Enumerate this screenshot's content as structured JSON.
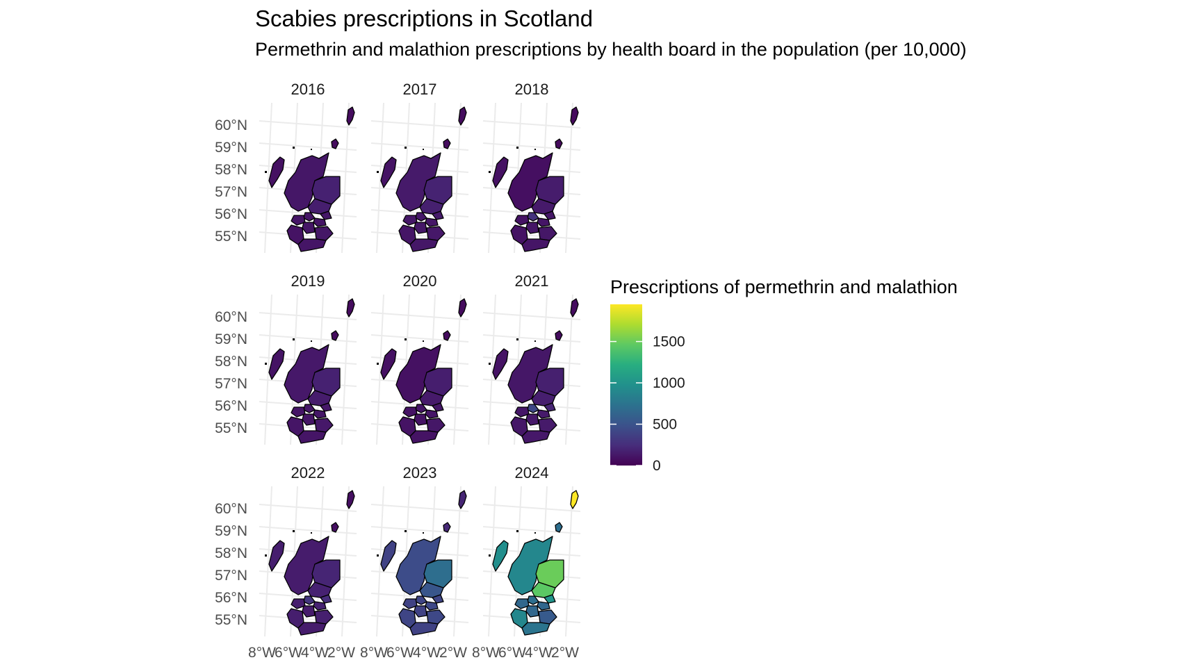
{
  "title": "Scabies prescriptions in Scotland",
  "subtitle": "Permethrin and malathion prescriptions by health board in the population (per 10,000)",
  "chart_data": {
    "type": "choropleth-map-facets",
    "facets": [
      "2016",
      "2017",
      "2018",
      "2019",
      "2020",
      "2021",
      "2022",
      "2023",
      "2024"
    ],
    "y_ticks": [
      "60°N",
      "59°N",
      "58°N",
      "57°N",
      "56°N",
      "55°N"
    ],
    "x_ticks": [
      "8°W",
      "6°W",
      "4°W",
      "2°W"
    ],
    "legend": {
      "title": "Prescriptions of permethrin and malathion",
      "ticks": [
        {
          "label": "1500",
          "value": 1500
        },
        {
          "label": "1000",
          "value": 1000
        },
        {
          "label": "500",
          "value": 500
        },
        {
          "label": "0",
          "value": 0
        }
      ],
      "min": 0,
      "max": 1950,
      "palette": "viridis",
      "placement": "right"
    },
    "regions": [
      "Shetland",
      "Orkney",
      "Western Isles",
      "Highland",
      "Grampian",
      "Tayside",
      "Fife",
      "Forth Valley",
      "Greater Glasgow and Clyde",
      "Lothian",
      "Lanarkshire",
      "Ayrshire and Arran",
      "Borders",
      "Dumfries and Galloway"
    ],
    "values": {
      "2016": [
        60,
        60,
        90,
        120,
        180,
        160,
        120,
        110,
        110,
        110,
        110,
        100,
        120,
        110
      ],
      "2017": [
        60,
        60,
        100,
        140,
        190,
        170,
        140,
        130,
        120,
        120,
        120,
        110,
        130,
        120
      ],
      "2018": [
        50,
        50,
        90,
        80,
        150,
        140,
        120,
        280,
        100,
        110,
        110,
        100,
        120,
        110
      ],
      "2019": [
        60,
        60,
        100,
        130,
        180,
        150,
        130,
        120,
        110,
        120,
        110,
        110,
        130,
        110
      ],
      "2020": [
        60,
        60,
        90,
        90,
        160,
        140,
        120,
        110,
        100,
        110,
        100,
        100,
        120,
        100
      ],
      "2021": [
        60,
        60,
        100,
        120,
        170,
        160,
        200,
        420,
        120,
        140,
        130,
        120,
        140,
        130
      ],
      "2022": [
        80,
        80,
        160,
        150,
        200,
        180,
        250,
        300,
        160,
        180,
        150,
        160,
        170,
        150
      ],
      "2023": [
        200,
        220,
        380,
        450,
        700,
        520,
        400,
        400,
        380,
        420,
        380,
        400,
        420,
        380
      ],
      "2024": [
        1950,
        700,
        950,
        900,
        1500,
        1450,
        1000,
        700,
        650,
        650,
        650,
        900,
        550,
        750
      ]
    }
  }
}
